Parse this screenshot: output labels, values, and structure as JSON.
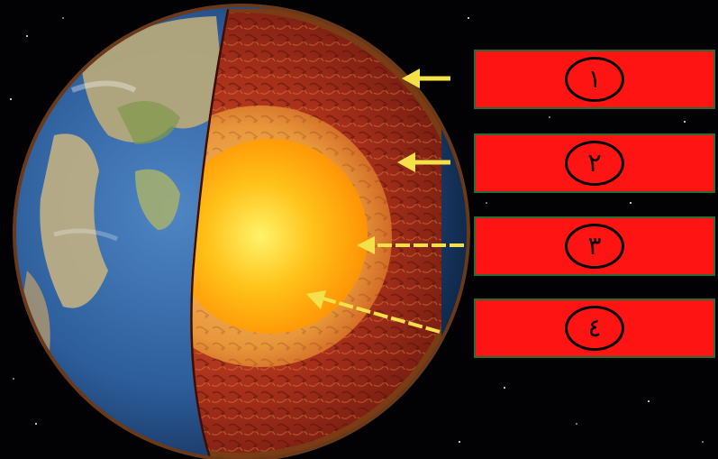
{
  "labels": [
    {
      "text": "١"
    },
    {
      "text": "٢"
    },
    {
      "text": "٣"
    },
    {
      "text": "٤"
    }
  ],
  "colors": {
    "label_fill": "#ff1414",
    "label_border": "#2a6b34",
    "arrow": "#f4e14a",
    "space": "#020204",
    "ocean": "#2d5d9b",
    "land": "#b8a97a",
    "crust": "#7a3c14",
    "mantle": "#9e2a14",
    "outer_core": "#e8973a",
    "inner_core": "#ffb400"
  },
  "icons": {
    "earth": "earth-cross-section-icon",
    "arrow": "arrow-left-icon"
  }
}
